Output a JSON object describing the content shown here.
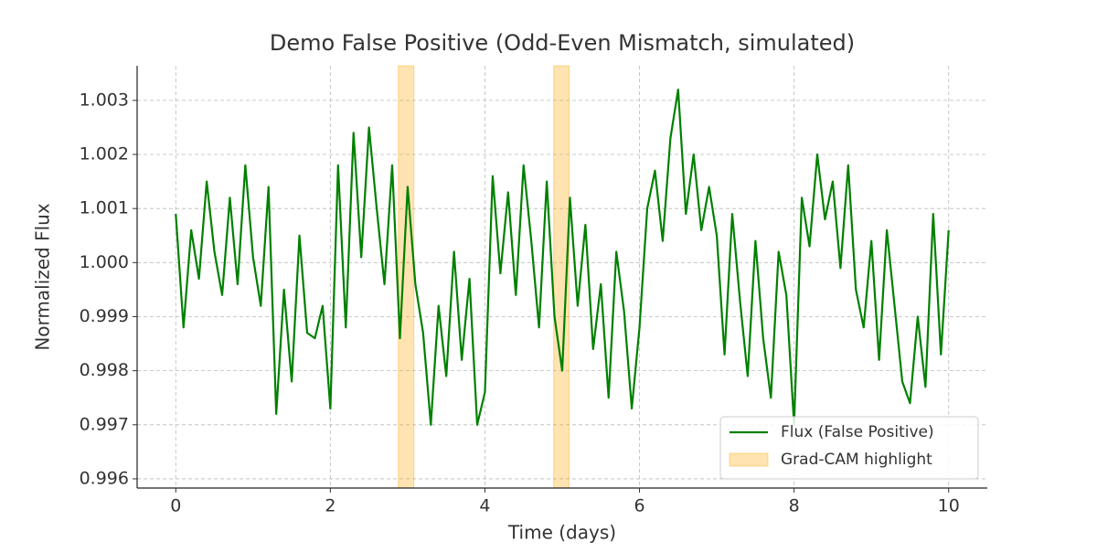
{
  "chart_data": {
    "type": "line",
    "title": "Demo False Positive (Odd-Even Mismatch, simulated)",
    "xlabel": "Time (days)",
    "ylabel": "Normalized Flux",
    "x": [
      0,
      0.1,
      0.2,
      0.3,
      0.4,
      0.5,
      0.6,
      0.7,
      0.8,
      0.9,
      1,
      1.1,
      1.2,
      1.3,
      1.4,
      1.5,
      1.6,
      1.7,
      1.8,
      1.9,
      2,
      2.1,
      2.2,
      2.3,
      2.4,
      2.5,
      2.6,
      2.7,
      2.8,
      2.9,
      3,
      3.1,
      3.2,
      3.3,
      3.4,
      3.5,
      3.6,
      3.7,
      3.8,
      3.9,
      4,
      4.1,
      4.2,
      4.3,
      4.4,
      4.5,
      4.6,
      4.7,
      4.8,
      4.9,
      5,
      5.1,
      5.2,
      5.3,
      5.4,
      5.5,
      5.6,
      5.7,
      5.8,
      5.9,
      6,
      6.1,
      6.2,
      6.3,
      6.4,
      6.5,
      6.6,
      6.7,
      6.8,
      6.9,
      7,
      7.1,
      7.2,
      7.3,
      7.4,
      7.5,
      7.6,
      7.7,
      7.8,
      7.9,
      8,
      8.1,
      8.2,
      8.3,
      8.4,
      8.5,
      8.6,
      8.7,
      8.8,
      8.9,
      9,
      9.1,
      9.2,
      9.3,
      9.4,
      9.5,
      9.6,
      9.7,
      9.8,
      9.9,
      10
    ],
    "series": [
      {
        "name": "Flux (False Positive)",
        "color": "#008000",
        "values": [
          1.0009,
          0.9988,
          1.0006,
          0.9997,
          1.0015,
          1.0002,
          0.9994,
          1.0012,
          0.9996,
          1.0018,
          1.0001,
          0.9992,
          1.0014,
          0.9972,
          0.9995,
          0.9978,
          1.0005,
          0.9987,
          0.9986,
          0.9992,
          0.9973,
          1.0018,
          0.9988,
          1.0024,
          1.0001,
          1.0025,
          1.001,
          0.9996,
          1.0018,
          0.9986,
          1.0014,
          0.9996,
          0.9987,
          0.997,
          0.9992,
          0.9979,
          1.0002,
          0.9982,
          0.9997,
          0.997,
          0.9976,
          1.0016,
          0.9998,
          1.0013,
          0.9994,
          1.0018,
          1.0004,
          0.9988,
          1.0015,
          0.999,
          0.998,
          1.0012,
          0.9992,
          1.0007,
          0.9984,
          0.9996,
          0.9975,
          1.0002,
          0.9991,
          0.9973,
          0.9988,
          1.001,
          1.0017,
          1.0004,
          1.0023,
          1.0032,
          1.0009,
          1.002,
          1.0006,
          1.0014,
          1.0005,
          0.9983,
          1.0009,
          0.9993,
          0.9979,
          1.0004,
          0.9986,
          0.9975,
          1.0002,
          0.9994,
          0.997,
          1.0012,
          1.0003,
          1.002,
          1.0008,
          1.0015,
          0.9999,
          1.0018,
          0.9995,
          0.9988,
          1.0004,
          0.9982,
          1.0006,
          0.9992,
          0.9978,
          0.9974,
          0.999,
          0.9977,
          1.0009,
          0.9983,
          1.0006
        ]
      }
    ],
    "highlight": {
      "name": "Grad-CAM highlight",
      "color": "#ffa500",
      "spans": [
        [
          2.88,
          3.08
        ],
        [
          4.89,
          5.09
        ]
      ]
    },
    "xlim": [
      -0.5,
      10.5
    ],
    "ylim": [
      0.99583,
      1.00364
    ],
    "xticks": [
      0,
      2,
      4,
      6,
      8,
      10
    ],
    "yticks": [
      0.996,
      0.997,
      0.998,
      0.999,
      {
        "value": 1,
        "label": "1.000"
      },
      1.001,
      1.002,
      1.003
    ],
    "grid": true,
    "legend": "lower right"
  }
}
